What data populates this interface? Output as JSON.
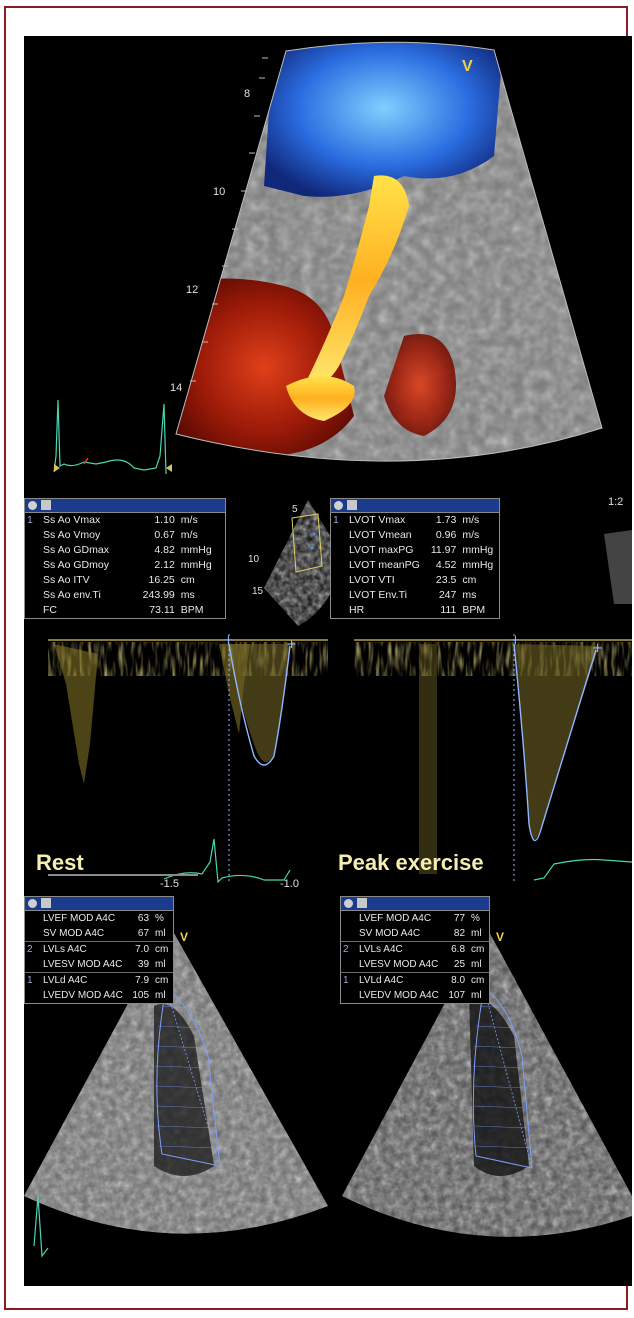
{
  "top_panel": {
    "view_marker": "V",
    "depth_ticks": [
      "8",
      "10",
      "12",
      "14"
    ]
  },
  "rest_doppler": {
    "scale_tag": "",
    "measurements": [
      {
        "idx": "1",
        "name": "Ss Ao Vmax",
        "value": "1.10",
        "unit": "m/s"
      },
      {
        "idx": "",
        "name": "Ss Ao Vmoy",
        "value": "0.67",
        "unit": "m/s"
      },
      {
        "idx": "",
        "name": "Ss Ao GDmax",
        "value": "4.82",
        "unit": "mmHg"
      },
      {
        "idx": "",
        "name": "Ss Ao GDmoy",
        "value": "2.12",
        "unit": "mmHg"
      },
      {
        "idx": "",
        "name": "Ss Ao ITV",
        "value": "16.25",
        "unit": "cm"
      },
      {
        "idx": "",
        "name": "Ss Ao env.Ti",
        "value": "243.99",
        "unit": "ms"
      },
      {
        "idx": "",
        "name": "FC",
        "value": "73.11",
        "unit": "BPM"
      }
    ],
    "axis_labels": [
      "-1.5",
      "-1.0"
    ],
    "thumb_ticks": [
      "5",
      "10",
      "15"
    ]
  },
  "peak_doppler": {
    "scale_tag": "1:2",
    "measurements": [
      {
        "idx": "1",
        "name": "LVOT Vmax",
        "value": "1.73",
        "unit": "m/s"
      },
      {
        "idx": "",
        "name": "LVOT Vmean",
        "value": "0.96",
        "unit": "m/s"
      },
      {
        "idx": "",
        "name": "LVOT maxPG",
        "value": "11.97",
        "unit": "mmHg"
      },
      {
        "idx": "",
        "name": "LVOT meanPG",
        "value": "4.52",
        "unit": "mmHg"
      },
      {
        "idx": "",
        "name": "LVOT VTI",
        "value": "23.5",
        "unit": "cm"
      },
      {
        "idx": "",
        "name": "LVOT Env.Ti",
        "value": "247",
        "unit": "ms"
      },
      {
        "idx": "",
        "name": "HR",
        "value": "111",
        "unit": "BPM"
      }
    ]
  },
  "labels": {
    "rest": "Rest",
    "peak": "Peak exercise"
  },
  "rest_echo": {
    "view_marker": "V",
    "groups": [
      {
        "idx": "",
        "rows": [
          {
            "name": "LVEF MOD A4C",
            "value": "63",
            "unit": "%"
          },
          {
            "name": "SV MOD A4C",
            "value": "67",
            "unit": "ml"
          }
        ]
      },
      {
        "idx": "2",
        "rows": [
          {
            "name": "LVLs A4C",
            "value": "7.0",
            "unit": "cm"
          },
          {
            "name": "LVESV MOD A4C",
            "value": "39",
            "unit": "ml"
          }
        ]
      },
      {
        "idx": "1",
        "rows": [
          {
            "name": "LVLd A4C",
            "value": "7.9",
            "unit": "cm"
          },
          {
            "name": "LVEDV MOD A4C",
            "value": "105",
            "unit": "ml"
          }
        ]
      }
    ]
  },
  "peak_echo": {
    "view_marker": "V",
    "groups": [
      {
        "idx": "",
        "rows": [
          {
            "name": "LVEF MOD A4C",
            "value": "77",
            "unit": "%"
          },
          {
            "name": "SV MOD A4C",
            "value": "82",
            "unit": "ml"
          }
        ]
      },
      {
        "idx": "2",
        "rows": [
          {
            "name": "LVLs A4C",
            "value": "6.8",
            "unit": "cm"
          },
          {
            "name": "LVESV MOD A4C",
            "value": "25",
            "unit": "ml"
          }
        ]
      },
      {
        "idx": "1",
        "rows": [
          {
            "name": "LVLd A4C",
            "value": "8.0",
            "unit": "cm"
          },
          {
            "name": "LVEDV MOD A4C",
            "value": "107",
            "unit": "ml"
          }
        ]
      }
    ]
  },
  "colors": {
    "frame_border": "#8b1c24",
    "header_blue": "#1b3c8c",
    "doppler_yellow": "#c9b43a",
    "trace_blue": "#8fb6ff",
    "ecg_green": "#49d6b4",
    "label_cream": "#f5eeb0"
  }
}
